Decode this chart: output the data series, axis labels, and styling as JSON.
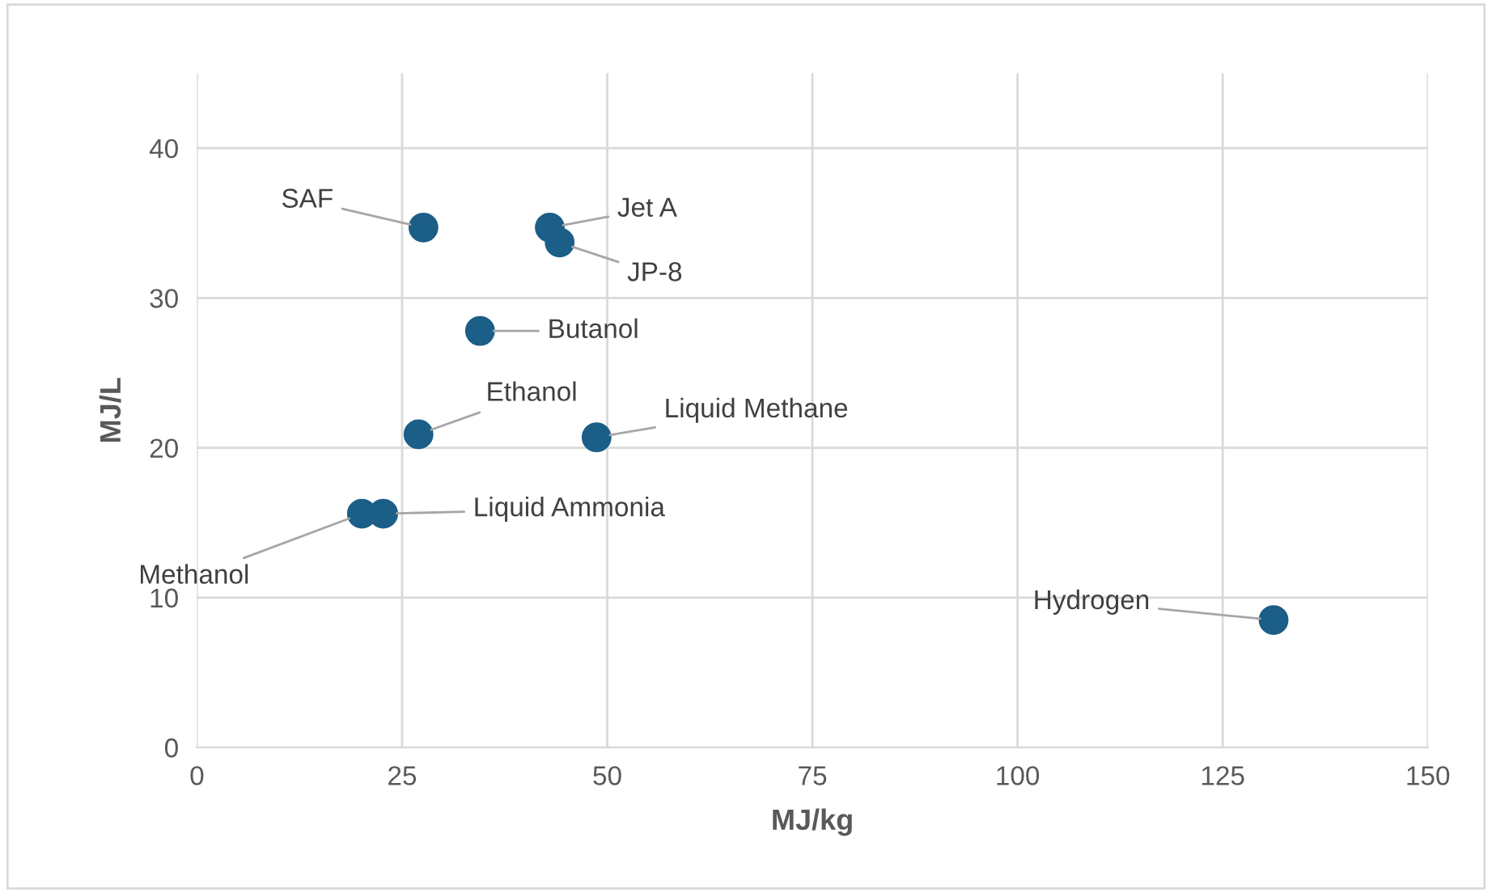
{
  "chart_data": {
    "type": "scatter",
    "xlabel": "MJ/kg",
    "ylabel": "MJ/L",
    "series": [
      {
        "color": "#1b5e87",
        "x": [
          27.6,
          43.0,
          44.2,
          34.5,
          27.0,
          48.7,
          20.1,
          22.7,
          131.2
        ],
        "values": [
          34.7,
          34.7,
          33.7,
          27.8,
          20.9,
          20.7,
          15.6,
          15.6,
          8.5
        ]
      }
    ],
    "annotations": [
      {
        "text": "SAF",
        "x": 27.6,
        "y": 34.7
      },
      {
        "text": "Jet A",
        "x": 43.0,
        "y": 34.7
      },
      {
        "text": "JP-8",
        "x": 44.2,
        "y": 33.7
      },
      {
        "text": "Butanol",
        "x": 34.5,
        "y": 27.8
      },
      {
        "text": "Ethanol",
        "x": 27.0,
        "y": 20.9
      },
      {
        "text": "Liquid Methane",
        "x": 48.7,
        "y": 20.7
      },
      {
        "text": "Methanol",
        "x": 20.1,
        "y": 15.6
      },
      {
        "text": "Liquid Ammonia",
        "x": 22.7,
        "y": 15.6
      },
      {
        "text": "Hydrogen",
        "x": 131.2,
        "y": 8.5
      }
    ],
    "xlim": [
      0,
      150
    ],
    "xticks": [
      0,
      25,
      50,
      75,
      100,
      125,
      150
    ],
    "ylim": [
      0,
      45
    ],
    "yticks": [
      0,
      10,
      20,
      30,
      40
    ],
    "grid": true,
    "marker": "circle",
    "legend": false
  }
}
